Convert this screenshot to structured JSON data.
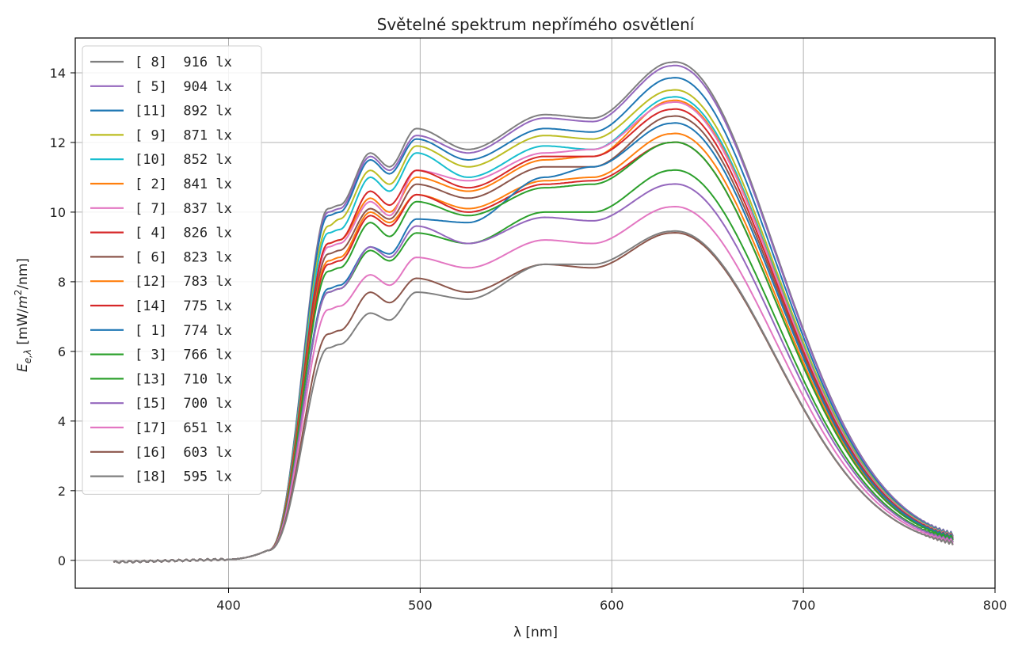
{
  "chart_data": {
    "type": "line",
    "title": "Světelné spektrum nepřímého osvětlení",
    "xlabel": "λ [nm]",
    "ylabel": "E_{e,λ} [mW/m²/nm]",
    "ylabel_parts": {
      "e": "E",
      "sub": "e,λ",
      "unit_pre": " [mW/",
      "m": "m",
      "sup": "2",
      "unit_post": "/nm]"
    },
    "xlim": [
      320,
      800
    ],
    "ylim": [
      -0.8,
      15.0
    ],
    "xticks": [
      400,
      500,
      600,
      700,
      800
    ],
    "yticks": [
      0,
      2,
      4,
      6,
      8,
      10,
      12,
      14
    ],
    "grid": true,
    "legend_position": "top-left",
    "x_range": [
      340,
      778
    ],
    "series": [
      {
        "name": "[ 8]  916 lx",
        "color": "#7f7f7f",
        "values": {
          "p452": 10.1,
          "p458": 10.2,
          "p474": 11.7,
          "p484": 11.3,
          "p498": 12.4,
          "p525": 11.8,
          "p565": 12.8,
          "p590": 12.7,
          "p631": 14.3
        }
      },
      {
        "name": "[ 5]  904 lx",
        "color": "#9467bd",
        "values": {
          "p452": 10.0,
          "p458": 10.1,
          "p474": 11.6,
          "p484": 11.2,
          "p498": 12.2,
          "p525": 11.7,
          "p565": 12.7,
          "p590": 12.6,
          "p631": 14.2
        }
      },
      {
        "name": "[11]  892 lx",
        "color": "#1f77b4",
        "values": {
          "p452": 9.9,
          "p458": 10.0,
          "p474": 11.5,
          "p484": 11.1,
          "p498": 12.1,
          "p525": 11.5,
          "p565": 12.4,
          "p590": 12.3,
          "p631": 13.85
        }
      },
      {
        "name": "[ 9]  871 lx",
        "color": "#bcbd22",
        "values": {
          "p452": 9.6,
          "p458": 9.8,
          "p474": 11.2,
          "p484": 10.8,
          "p498": 11.9,
          "p525": 11.3,
          "p565": 12.2,
          "p590": 12.1,
          "p631": 13.5
        }
      },
      {
        "name": "[10]  852 lx",
        "color": "#17becf",
        "values": {
          "p452": 9.4,
          "p458": 9.5,
          "p474": 11.0,
          "p484": 10.6,
          "p498": 11.7,
          "p525": 11.0,
          "p565": 11.9,
          "p590": 11.8,
          "p631": 13.3
        }
      },
      {
        "name": "[ 2]  841 lx",
        "color": "#ff7f0e",
        "values": {
          "p452": 9.1,
          "p458": 9.2,
          "p474": 10.4,
          "p484": 10.0,
          "p498": 11.0,
          "p525": 10.6,
          "p565": 11.5,
          "p590": 11.6,
          "p631": 13.2
        }
      },
      {
        "name": "[ 7]  837 lx",
        "color": "#e377c2",
        "values": {
          "p452": 9.0,
          "p458": 9.1,
          "p474": 10.3,
          "p484": 9.9,
          "p498": 11.2,
          "p525": 10.9,
          "p565": 11.7,
          "p590": 11.8,
          "p631": 13.15
        }
      },
      {
        "name": "[ 4]  826 lx",
        "color": "#d62728",
        "values": {
          "p452": 9.1,
          "p458": 9.2,
          "p474": 10.6,
          "p484": 10.2,
          "p498": 11.2,
          "p525": 10.7,
          "p565": 11.6,
          "p590": 11.6,
          "p631": 12.95
        }
      },
      {
        "name": "[ 6]  823 lx",
        "color": "#8c564b",
        "values": {
          "p452": 8.8,
          "p458": 8.9,
          "p474": 10.1,
          "p484": 9.8,
          "p498": 10.8,
          "p525": 10.4,
          "p565": 11.3,
          "p590": 11.3,
          "p631": 12.75
        }
      },
      {
        "name": "[12]  783 lx",
        "color": "#ff7f0e",
        "values": {
          "p452": 8.6,
          "p458": 8.7,
          "p474": 10.0,
          "p484": 9.7,
          "p498": 10.5,
          "p525": 10.1,
          "p565": 10.9,
          "p590": 11.0,
          "p631": 12.25
        }
      },
      {
        "name": "[14]  775 lx",
        "color": "#d62728",
        "values": {
          "p452": 8.5,
          "p458": 8.6,
          "p474": 9.9,
          "p484": 9.6,
          "p498": 10.5,
          "p525": 10.0,
          "p565": 10.8,
          "p590": 10.9,
          "p631": 12.0
        }
      },
      {
        "name": "[ 1]  774 lx",
        "color": "#1f77b4",
        "values": {
          "p452": 7.8,
          "p458": 7.9,
          "p474": 9.0,
          "p484": 8.8,
          "p498": 9.8,
          "p525": 9.7,
          "p565": 11.0,
          "p590": 11.3,
          "p631": 12.55
        }
      },
      {
        "name": "[ 3]  766 lx",
        "color": "#2ca02c",
        "values": {
          "p452": 8.3,
          "p458": 8.4,
          "p474": 9.7,
          "p484": 9.3,
          "p498": 10.3,
          "p525": 9.9,
          "p565": 10.7,
          "p590": 10.8,
          "p631": 12.0
        }
      },
      {
        "name": "[13]  710 lx",
        "color": "#2ca02c",
        "values": {
          "p452": 7.7,
          "p458": 7.8,
          "p474": 8.9,
          "p484": 8.6,
          "p498": 9.4,
          "p525": 9.1,
          "p565": 10.0,
          "p590": 10.0,
          "p631": 11.2
        }
      },
      {
        "name": "[15]  700 lx",
        "color": "#9467bd",
        "values": {
          "p452": 7.7,
          "p458": 7.8,
          "p474": 9.0,
          "p484": 8.7,
          "p498": 9.6,
          "p525": 9.1,
          "p565": 9.85,
          "p590": 9.75,
          "p631": 10.8
        }
      },
      {
        "name": "[17]  651 lx",
        "color": "#e377c2",
        "values": {
          "p452": 7.2,
          "p458": 7.3,
          "p474": 8.2,
          "p484": 7.9,
          "p498": 8.7,
          "p525": 8.4,
          "p565": 9.2,
          "p590": 9.1,
          "p631": 10.15
        }
      },
      {
        "name": "[16]  603 lx",
        "color": "#8c564b",
        "values": {
          "p452": 6.5,
          "p458": 6.6,
          "p474": 7.7,
          "p484": 7.4,
          "p498": 8.1,
          "p525": 7.7,
          "p565": 8.5,
          "p590": 8.4,
          "p631": 9.4
        }
      },
      {
        "name": "[18]  595 lx",
        "color": "#7f7f7f",
        "values": {
          "p452": 6.1,
          "p458": 6.2,
          "p474": 7.1,
          "p484": 6.9,
          "p498": 7.7,
          "p525": 7.5,
          "p565": 8.5,
          "p590": 8.5,
          "p631": 9.45
        }
      }
    ]
  }
}
